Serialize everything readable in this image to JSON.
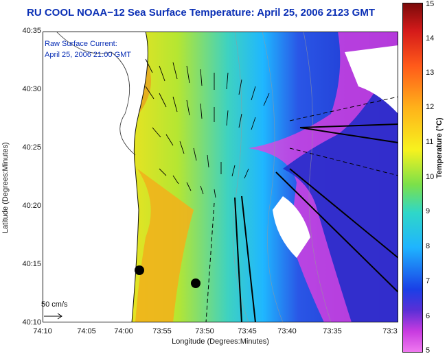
{
  "title": "RU COOL  NOAA−12  Sea Surface Temperature:  April 25, 2006 2123 GMT",
  "legend": {
    "line1": "Raw Surface Current:",
    "line2": "April 25, 2006 21:00 GMT",
    "scale_label": "50 cm/s"
  },
  "axes": {
    "xlabel": "Longitude (Degrees:Minutes)",
    "ylabel": "Latitude (Degrees:Minutes)",
    "xticks": [
      "74:10",
      "74:05",
      "74:00",
      "73:55",
      "73:50",
      "73:45",
      "73:40",
      "73:35",
      "73:3"
    ],
    "yticks": [
      "40:35",
      "40:30",
      "40:25",
      "40:20",
      "40:15",
      "40:10"
    ]
  },
  "colorbar": {
    "label": "Temperature (°C)",
    "ticks": [
      "15",
      "14",
      "13",
      "12",
      "11",
      "10",
      "9",
      "8",
      "7",
      "6",
      "5"
    ],
    "min": 5,
    "max": 15
  },
  "colors": {
    "title": "#0a2fb5",
    "warm": "#d51a1a",
    "cold": "#2a39d6",
    "low": "#e83fe0"
  }
}
